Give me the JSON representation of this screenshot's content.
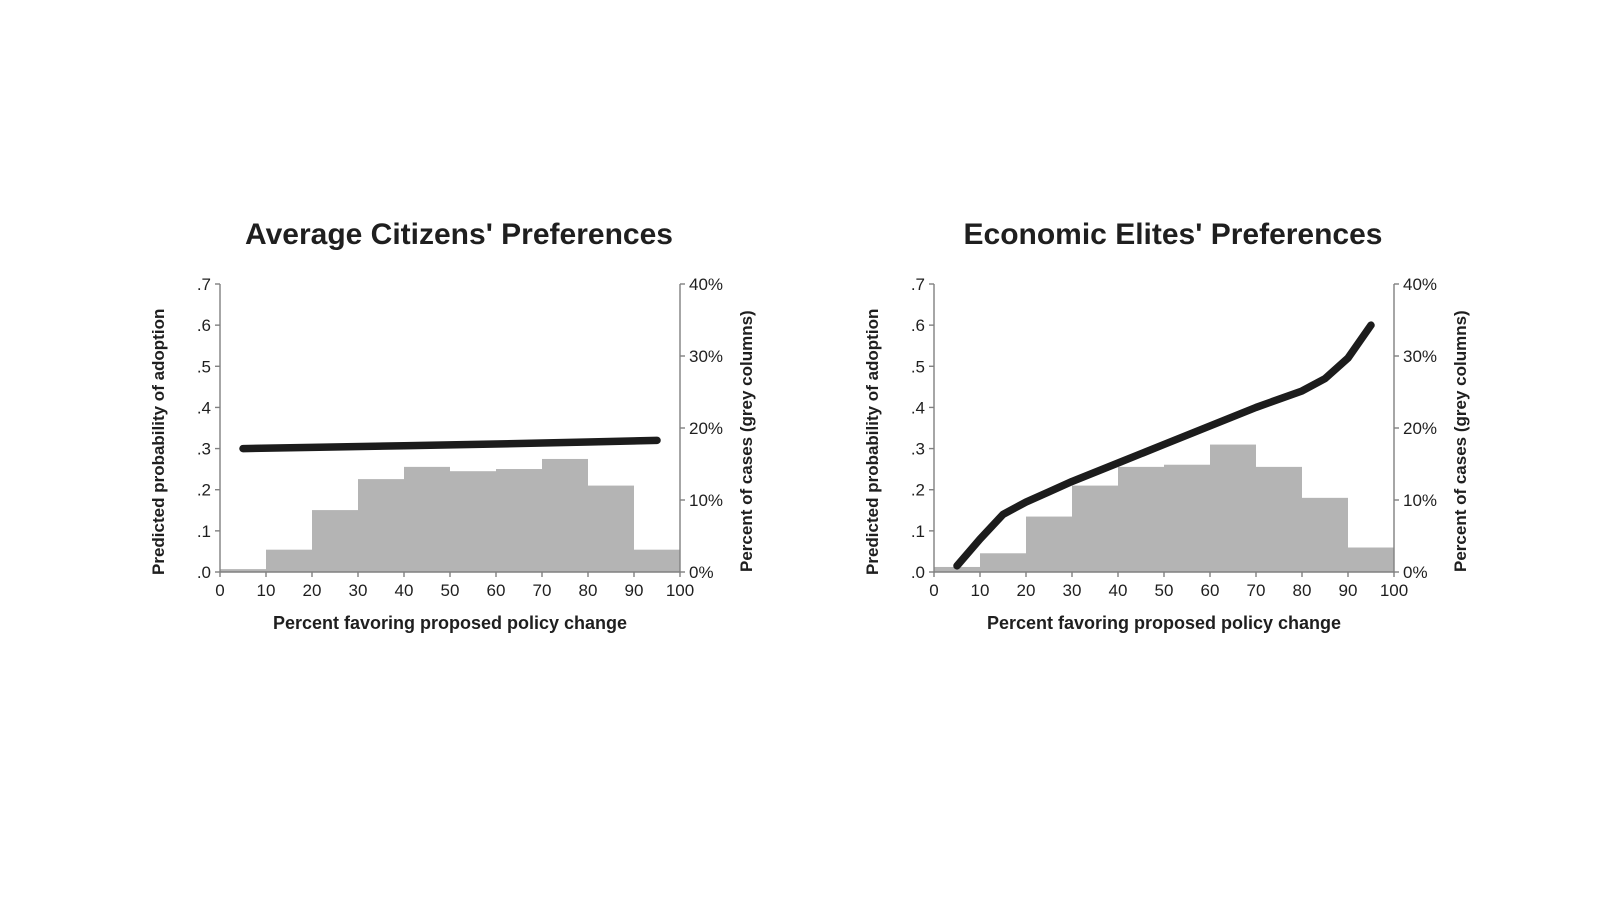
{
  "colors": {
    "bar": "#b4b4b4",
    "line": "#1c1c1c",
    "axis": "#808080",
    "text": "#1f1f1f",
    "background": "#ffffff"
  },
  "chart_data": [
    {
      "type": "line+bar",
      "title": "Average Citizens' Preferences",
      "xlabel": "Percent favoring proposed policy change",
      "ylabel_left": "Predicted probability of adoption",
      "ylabel_right": "Percent of cases (grey columns)",
      "xlim": [
        0,
        100
      ],
      "ylim_left": [
        0,
        0.7
      ],
      "ylim_right": [
        0,
        40
      ],
      "x_ticks": [
        "0",
        "10",
        "20",
        "30",
        "40",
        "50",
        "60",
        "70",
        "80",
        "90",
        "100"
      ],
      "y_left_ticks": [
        ".0",
        ".1",
        ".2",
        ".3",
        ".4",
        ".5",
        ".6",
        ".7"
      ],
      "y_right_ticks": [
        "0%",
        "10%",
        "20%",
        "30%",
        "40%"
      ],
      "bars": {
        "bin_width": 10,
        "bin_starts": [
          0,
          10,
          20,
          30,
          40,
          50,
          60,
          70,
          80,
          90
        ],
        "values_percent": [
          0.4,
          3.1,
          8.6,
          12.9,
          14.6,
          14.0,
          14.3,
          15.7,
          12.0,
          3.1
        ]
      },
      "line": {
        "series_name": "Predicted probability of adoption",
        "points": [
          [
            5,
            0.3
          ],
          [
            20,
            0.303
          ],
          [
            40,
            0.307
          ],
          [
            60,
            0.311
          ],
          [
            80,
            0.316
          ],
          [
            95,
            0.32
          ]
        ]
      }
    },
    {
      "type": "line+bar",
      "title": "Economic Elites' Preferences",
      "xlabel": "Percent favoring proposed policy change",
      "ylabel_left": "Predicted probability of adoption",
      "ylabel_right": "Percent of cases (grey columns)",
      "xlim": [
        0,
        100
      ],
      "ylim_left": [
        0,
        0.7
      ],
      "ylim_right": [
        0,
        40
      ],
      "x_ticks": [
        "0",
        "10",
        "20",
        "30",
        "40",
        "50",
        "60",
        "70",
        "80",
        "90",
        "100"
      ],
      "y_left_ticks": [
        ".0",
        ".1",
        ".2",
        ".3",
        ".4",
        ".5",
        ".6",
        ".7"
      ],
      "y_right_ticks": [
        "0%",
        "10%",
        "20%",
        "30%",
        "40%"
      ],
      "bars": {
        "bin_width": 10,
        "bin_starts": [
          0,
          10,
          20,
          30,
          40,
          50,
          60,
          70,
          80,
          90
        ],
        "values_percent": [
          0.7,
          2.6,
          7.7,
          12.0,
          14.6,
          14.9,
          17.7,
          14.6,
          10.3,
          3.4
        ]
      },
      "line": {
        "series_name": "Predicted probability of adoption",
        "points": [
          [
            5,
            0.015
          ],
          [
            10,
            0.08
          ],
          [
            15,
            0.14
          ],
          [
            20,
            0.17
          ],
          [
            25,
            0.195
          ],
          [
            30,
            0.22
          ],
          [
            40,
            0.265
          ],
          [
            50,
            0.31
          ],
          [
            60,
            0.355
          ],
          [
            70,
            0.4
          ],
          [
            80,
            0.44
          ],
          [
            85,
            0.47
          ],
          [
            90,
            0.52
          ],
          [
            95,
            0.6
          ]
        ]
      }
    }
  ]
}
